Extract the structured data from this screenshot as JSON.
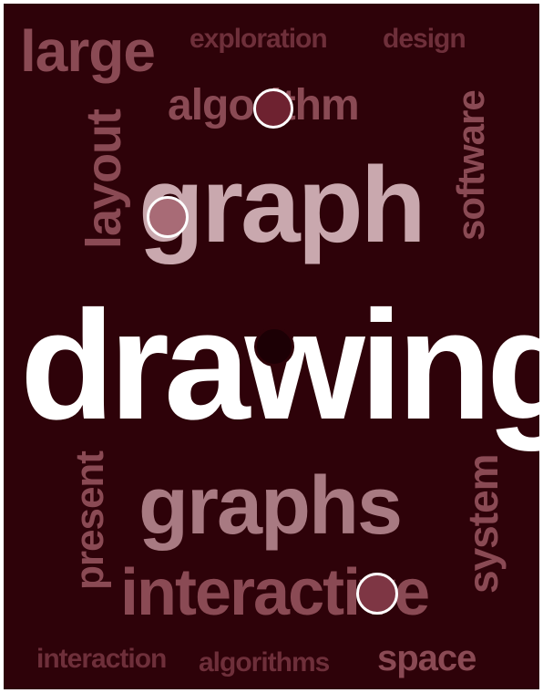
{
  "cloud": {
    "background": "#2e0209",
    "words": {
      "large": "large",
      "exploration": "exploration",
      "design": "design",
      "algorithm": "algorithm",
      "layout": "layout",
      "software": "software",
      "graph": "graph",
      "drawing": "drawing",
      "present": "present",
      "graphs": "graphs",
      "system": "system",
      "interactive": "interactive",
      "interaction": "interaction",
      "algorithms": "algorithms",
      "space": "space"
    },
    "colors": {
      "dim": "#8a4a54",
      "mid": "#a87a82",
      "light": "#c9a8ae",
      "white": "#ffffff"
    }
  },
  "markers": {
    "count": 4,
    "fill_colors": [
      "#6e2230",
      "#a86b76",
      "#1c0005",
      "#7e3644"
    ],
    "ring_color": "#ffffff"
  }
}
